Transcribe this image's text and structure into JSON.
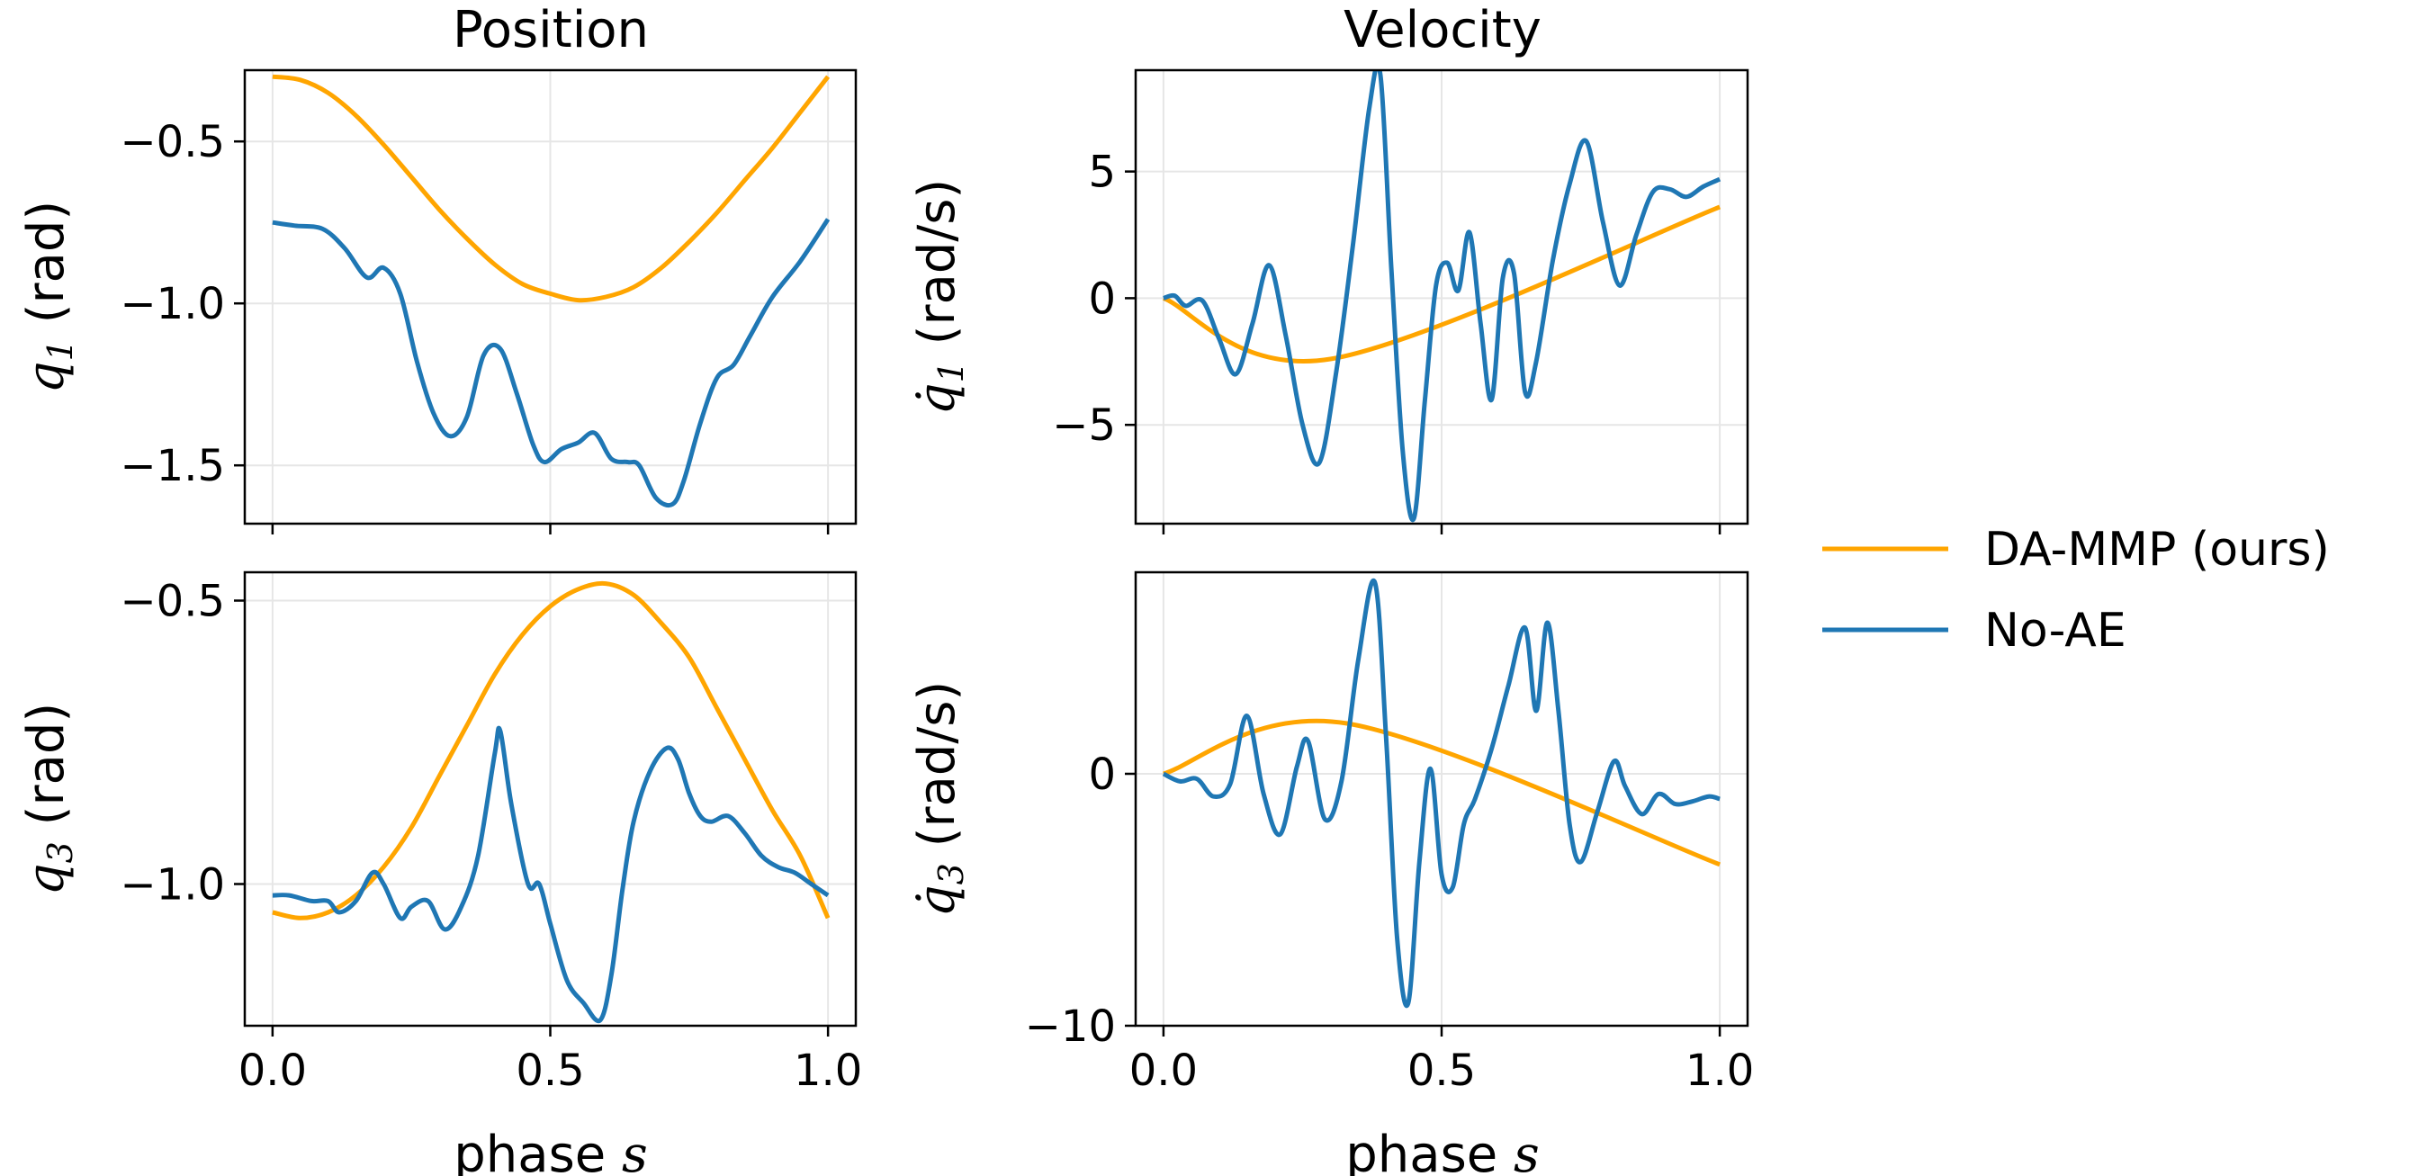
{
  "colors": {
    "da_mmp": "#ffa500",
    "no_ae": "#1f77b4",
    "grid": "#e6e6e6",
    "axis": "#000000"
  },
  "titles": {
    "position": "Position",
    "velocity": "Velocity"
  },
  "xlabel": {
    "prefix": "phase ",
    "var": "s"
  },
  "legend": {
    "placement": "right-center",
    "entries": [
      "DA-MMP (ours)",
      "No-AE"
    ]
  },
  "chart_data": [
    {
      "type": "line",
      "id": "q1-position",
      "title": "Position",
      "ylabel": {
        "sym": "q",
        "sub": "1",
        "dot": false,
        "unit": " (rad)"
      },
      "xlim": [
        -0.05,
        1.05
      ],
      "ylim": [
        -1.68,
        -0.28
      ],
      "xticks": [
        "0.0",
        "0.5",
        "1.0"
      ],
      "yticks": [
        "−0.5",
        "−1.0",
        "−1.5"
      ],
      "ytick_values": [
        -0.5,
        -1.0,
        -1.5
      ],
      "grid": true,
      "series": [
        {
          "name": "DA-MMP (ours)",
          "x": [
            0.0,
            0.05,
            0.1,
            0.15,
            0.2,
            0.25,
            0.3,
            0.35,
            0.4,
            0.45,
            0.5,
            0.55,
            0.6,
            0.65,
            0.7,
            0.75,
            0.8,
            0.85,
            0.9,
            0.95,
            1.0
          ],
          "y": [
            -0.3,
            -0.31,
            -0.35,
            -0.42,
            -0.51,
            -0.61,
            -0.71,
            -0.8,
            -0.88,
            -0.94,
            -0.97,
            -0.99,
            -0.98,
            -0.95,
            -0.89,
            -0.81,
            -0.72,
            -0.62,
            -0.52,
            -0.41,
            -0.3
          ]
        },
        {
          "name": "No-AE",
          "x": [
            0.0,
            0.04,
            0.09,
            0.13,
            0.17,
            0.2,
            0.23,
            0.26,
            0.29,
            0.32,
            0.35,
            0.38,
            0.41,
            0.44,
            0.47,
            0.49,
            0.52,
            0.55,
            0.58,
            0.61,
            0.64,
            0.66,
            0.69,
            0.72,
            0.74,
            0.77,
            0.8,
            0.83,
            0.86,
            0.9,
            0.95,
            1.0
          ],
          "y": [
            -0.75,
            -0.76,
            -0.77,
            -0.83,
            -0.92,
            -0.89,
            -0.97,
            -1.18,
            -1.34,
            -1.41,
            -1.35,
            -1.16,
            -1.14,
            -1.28,
            -1.44,
            -1.49,
            -1.45,
            -1.43,
            -1.4,
            -1.48,
            -1.49,
            -1.5,
            -1.6,
            -1.62,
            -1.55,
            -1.37,
            -1.23,
            -1.19,
            -1.1,
            -0.98,
            -0.87,
            -0.74
          ]
        }
      ]
    },
    {
      "type": "line",
      "id": "q1-velocity",
      "title": "Velocity",
      "ylabel": {
        "sym": "q",
        "sub": "1",
        "dot": true,
        "unit": " (rad/s)"
      },
      "xlim": [
        -0.05,
        1.05
      ],
      "ylim": [
        -8.9,
        9.0
      ],
      "xticks": [
        "0.0",
        "0.5",
        "1.0"
      ],
      "yticks": [
        "5",
        "0",
        "−5"
      ],
      "ytick_values": [
        5,
        0,
        -5
      ],
      "grid": true,
      "series": [
        {
          "name": "DA-MMP (ours)",
          "x": [
            0.0,
            0.3,
            1.0
          ],
          "y": [
            0.0,
            -2.4,
            3.6
          ]
        },
        {
          "name": "No-AE",
          "x": [
            0.0,
            0.02,
            0.04,
            0.07,
            0.1,
            0.13,
            0.16,
            0.19,
            0.22,
            0.25,
            0.28,
            0.31,
            0.34,
            0.37,
            0.39,
            0.41,
            0.43,
            0.45,
            0.47,
            0.49,
            0.51,
            0.53,
            0.55,
            0.57,
            0.59,
            0.61,
            0.63,
            0.65,
            0.67,
            0.7,
            0.73,
            0.76,
            0.79,
            0.82,
            0.85,
            0.88,
            0.91,
            0.94,
            0.97,
            1.0
          ],
          "y": [
            0.0,
            0.1,
            -0.3,
            -0.1,
            -1.6,
            -3.0,
            -1.0,
            1.3,
            -1.5,
            -5.0,
            -6.5,
            -3.0,
            2.0,
            7.5,
            8.8,
            1.0,
            -6.0,
            -8.7,
            -4.0,
            0.5,
            1.4,
            0.3,
            2.6,
            -1.0,
            -4.0,
            0.8,
            1.0,
            -3.7,
            -2.5,
            1.5,
            4.5,
            6.2,
            3.0,
            0.5,
            2.5,
            4.2,
            4.3,
            4.0,
            4.4,
            4.7
          ]
        }
      ]
    },
    {
      "type": "line",
      "id": "q3-position",
      "title": "",
      "ylabel": {
        "sym": "q",
        "sub": "3",
        "dot": false,
        "unit": " (rad)"
      },
      "xlim": [
        -0.05,
        1.05
      ],
      "ylim": [
        -1.25,
        -0.45
      ],
      "xticks": [
        "0.0",
        "0.5",
        "1.0"
      ],
      "yticks": [
        "−0.5",
        "−1.0"
      ],
      "ytick_values": [
        -0.5,
        -1.0
      ],
      "grid": true,
      "series": [
        {
          "name": "DA-MMP (ours)",
          "x": [
            0.0,
            0.05,
            0.1,
            0.15,
            0.2,
            0.25,
            0.3,
            0.35,
            0.4,
            0.45,
            0.5,
            0.55,
            0.6,
            0.65,
            0.7,
            0.75,
            0.8,
            0.85,
            0.9,
            0.95,
            1.0
          ],
          "y": [
            -1.05,
            -1.06,
            -1.05,
            -1.02,
            -0.97,
            -0.9,
            -0.81,
            -0.72,
            -0.63,
            -0.56,
            -0.51,
            -0.48,
            -0.47,
            -0.49,
            -0.54,
            -0.6,
            -0.69,
            -0.78,
            -0.87,
            -0.95,
            -1.06
          ]
        },
        {
          "name": "No-AE",
          "x": [
            0.0,
            0.03,
            0.07,
            0.1,
            0.12,
            0.15,
            0.18,
            0.2,
            0.23,
            0.25,
            0.28,
            0.31,
            0.34,
            0.37,
            0.4,
            0.41,
            0.43,
            0.46,
            0.48,
            0.5,
            0.53,
            0.56,
            0.59,
            0.61,
            0.63,
            0.65,
            0.68,
            0.71,
            0.73,
            0.75,
            0.77,
            0.79,
            0.82,
            0.85,
            0.88,
            0.91,
            0.94,
            0.97,
            1.0
          ],
          "y": [
            -1.02,
            -1.02,
            -1.03,
            -1.03,
            -1.05,
            -1.03,
            -0.98,
            -1.0,
            -1.06,
            -1.04,
            -1.03,
            -1.08,
            -1.04,
            -0.95,
            -0.77,
            -0.73,
            -0.86,
            -1.0,
            -1.0,
            -1.07,
            -1.17,
            -1.21,
            -1.24,
            -1.16,
            -1.01,
            -0.89,
            -0.8,
            -0.76,
            -0.78,
            -0.84,
            -0.88,
            -0.89,
            -0.88,
            -0.91,
            -0.95,
            -0.97,
            -0.98,
            -1.0,
            -1.02
          ]
        }
      ]
    },
    {
      "type": "line",
      "id": "q3-velocity",
      "title": "",
      "ylabel": {
        "sym": "q",
        "sub": "3",
        "dot": true,
        "unit": " (rad/s)"
      },
      "xlim": [
        -0.05,
        1.05
      ],
      "ylim": [
        -10.0,
        8.0
      ],
      "xticks": [
        "0.0",
        "0.5",
        "1.0"
      ],
      "yticks": [
        "0",
        "−10"
      ],
      "ytick_values": [
        0,
        -10
      ],
      "grid": true,
      "series": [
        {
          "name": "DA-MMP (ours)",
          "x": [
            0.0,
            0.33,
            1.0
          ],
          "y": [
            0.0,
            2.0,
            -3.6
          ]
        },
        {
          "name": "No-AE",
          "x": [
            0.0,
            0.03,
            0.06,
            0.09,
            0.12,
            0.15,
            0.18,
            0.21,
            0.24,
            0.26,
            0.29,
            0.32,
            0.35,
            0.38,
            0.4,
            0.42,
            0.44,
            0.46,
            0.48,
            0.5,
            0.52,
            0.54,
            0.56,
            0.59,
            0.62,
            0.65,
            0.67,
            0.69,
            0.71,
            0.73,
            0.75,
            0.78,
            0.81,
            0.83,
            0.86,
            0.89,
            0.92,
            0.95,
            0.98,
            1.0
          ],
          "y": [
            0.0,
            -0.3,
            -0.2,
            -0.9,
            -0.4,
            2.3,
            -0.8,
            -2.4,
            0.3,
            1.3,
            -1.8,
            -0.3,
            4.5,
            7.6,
            1.5,
            -6.5,
            -9.1,
            -3.5,
            0.2,
            -4.0,
            -4.5,
            -2.0,
            -1.0,
            1.0,
            3.5,
            5.8,
            2.5,
            6.0,
            2.5,
            -2.0,
            -3.5,
            -1.5,
            0.5,
            -0.5,
            -1.6,
            -0.8,
            -1.2,
            -1.1,
            -0.9,
            -1.0
          ]
        }
      ]
    }
  ]
}
